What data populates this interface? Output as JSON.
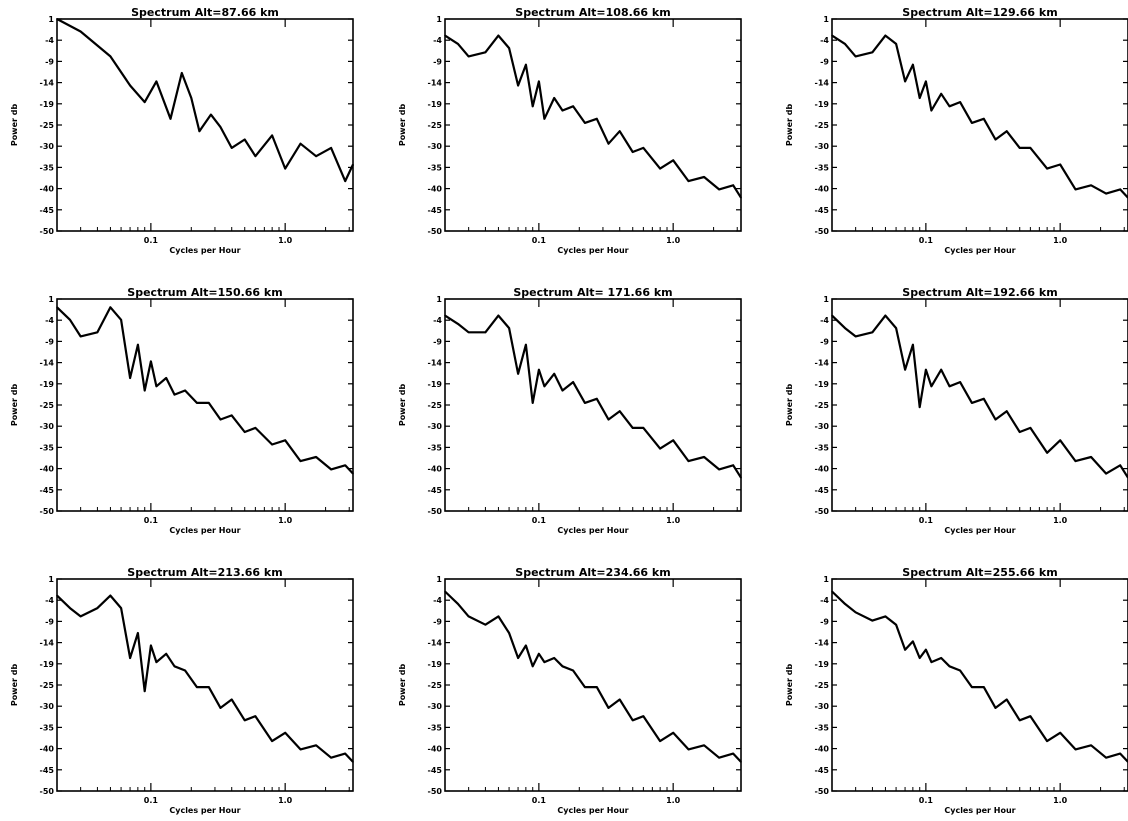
{
  "figure": {
    "colors": {
      "line": "#000000",
      "frame": "#000000",
      "background": "#ffffff"
    }
  },
  "chart_data": [
    {
      "type": "line",
      "title": "Spectrum Alt=87.66 km",
      "xlabel": "Cycles per Hour",
      "ylabel": "Power db",
      "xscale": "log",
      "xlim": [
        0.02,
        3.2
      ],
      "ylim": [
        -50,
        1
      ],
      "x_tick_labels": [
        "0.1",
        "1.0"
      ],
      "y_tick_labels": [
        "1",
        "-4",
        "-9",
        "-14",
        "-19",
        "-25",
        "-30",
        "-35",
        "-40",
        "-45",
        "-50"
      ],
      "series": [
        {
          "x": [
            0.02,
            0.03,
            0.05,
            0.07,
            0.09,
            0.11,
            0.14,
            0.17,
            0.2,
            0.23,
            0.28,
            0.33,
            0.4,
            0.5,
            0.6,
            0.8,
            1.0,
            1.3,
            1.7,
            2.2,
            2.8,
            3.2
          ],
          "y": [
            1,
            -2,
            -8,
            -15,
            -19,
            -14,
            -23,
            -12,
            -18,
            -26,
            -22,
            -25,
            -30,
            -28,
            -32,
            -27,
            -35,
            -29,
            -32,
            -30,
            -38,
            -34
          ]
        }
      ]
    },
    {
      "type": "line",
      "title": "Spectrum Alt=108.66 km",
      "xlabel": "Cycles per Hour",
      "ylabel": "Power db",
      "xscale": "log",
      "xlim": [
        0.02,
        3.2
      ],
      "ylim": [
        -50,
        1
      ],
      "x_tick_labels": [
        "0.1",
        "1.0"
      ],
      "y_tick_labels": [
        "1",
        "-4",
        "-9",
        "-14",
        "-19",
        "-25",
        "-30",
        "-35",
        "-40",
        "-45",
        "-50"
      ],
      "series": [
        {
          "x": [
            0.02,
            0.025,
            0.03,
            0.04,
            0.05,
            0.06,
            0.07,
            0.08,
            0.09,
            0.1,
            0.11,
            0.13,
            0.15,
            0.18,
            0.22,
            0.27,
            0.33,
            0.4,
            0.5,
            0.6,
            0.8,
            1.0,
            1.3,
            1.7,
            2.2,
            2.8,
            3.2
          ],
          "y": [
            -3,
            -5,
            -8,
            -7,
            -3,
            -6,
            -15,
            -10,
            -20,
            -14,
            -23,
            -18,
            -21,
            -20,
            -24,
            -23,
            -29,
            -26,
            -31,
            -30,
            -35,
            -33,
            -38,
            -37,
            -40,
            -39,
            -42
          ]
        }
      ]
    },
    {
      "type": "line",
      "title": "Spectrum Alt=129.66 km",
      "xlabel": "Cycles per Hour",
      "ylabel": "Power db",
      "xscale": "log",
      "xlim": [
        0.02,
        3.2
      ],
      "ylim": [
        -50,
        1
      ],
      "x_tick_labels": [
        "0.1",
        "1.0"
      ],
      "y_tick_labels": [
        "1",
        "-4",
        "-9",
        "-14",
        "-19",
        "-25",
        "-30",
        "-35",
        "-40",
        "-45",
        "-50"
      ],
      "series": [
        {
          "x": [
            0.02,
            0.025,
            0.03,
            0.04,
            0.05,
            0.06,
            0.07,
            0.08,
            0.09,
            0.1,
            0.11,
            0.13,
            0.15,
            0.18,
            0.22,
            0.27,
            0.33,
            0.4,
            0.5,
            0.6,
            0.8,
            1.0,
            1.3,
            1.7,
            2.2,
            2.8,
            3.2
          ],
          "y": [
            -3,
            -5,
            -8,
            -7,
            -3,
            -5,
            -14,
            -10,
            -18,
            -14,
            -21,
            -17,
            -20,
            -19,
            -24,
            -23,
            -28,
            -26,
            -30,
            -30,
            -35,
            -34,
            -40,
            -39,
            -41,
            -40,
            -42
          ]
        }
      ]
    },
    {
      "type": "line",
      "title": "Spectrum Alt=150.66 km",
      "xlabel": "Cycles per Hour",
      "ylabel": "Power db",
      "xscale": "log",
      "xlim": [
        0.02,
        3.2
      ],
      "ylim": [
        -50,
        1
      ],
      "x_tick_labels": [
        "0.1",
        "1.0"
      ],
      "y_tick_labels": [
        "1",
        "-4",
        "-9",
        "-14",
        "-19",
        "-25",
        "-30",
        "-35",
        "-40",
        "-45",
        "-50"
      ],
      "series": [
        {
          "x": [
            0.02,
            0.025,
            0.03,
            0.04,
            0.05,
            0.06,
            0.07,
            0.08,
            0.09,
            0.1,
            0.11,
            0.13,
            0.15,
            0.18,
            0.22,
            0.27,
            0.33,
            0.4,
            0.5,
            0.6,
            0.8,
            1.0,
            1.3,
            1.7,
            2.2,
            2.8,
            3.2
          ],
          "y": [
            -1,
            -4,
            -8,
            -7,
            -1,
            -4,
            -18,
            -10,
            -21,
            -14,
            -20,
            -18,
            -22,
            -21,
            -24,
            -24,
            -28,
            -27,
            -31,
            -30,
            -34,
            -33,
            -38,
            -37,
            -40,
            -39,
            -41
          ]
        }
      ]
    },
    {
      "type": "line",
      "title": "Spectrum Alt= 171.66 km",
      "xlabel": "Cycles per Hour",
      "ylabel": "Power db",
      "xscale": "log",
      "xlim": [
        0.02,
        3.2
      ],
      "ylim": [
        -50,
        1
      ],
      "x_tick_labels": [
        "0.1",
        "1.0"
      ],
      "y_tick_labels": [
        "1",
        "-4",
        "-9",
        "-14",
        "-19",
        "-25",
        "-30",
        "-35",
        "-40",
        "-45",
        "-50"
      ],
      "series": [
        {
          "x": [
            0.02,
            0.025,
            0.03,
            0.04,
            0.05,
            0.06,
            0.07,
            0.08,
            0.09,
            0.1,
            0.11,
            0.13,
            0.15,
            0.18,
            0.22,
            0.27,
            0.33,
            0.4,
            0.5,
            0.6,
            0.8,
            1.0,
            1.3,
            1.7,
            2.2,
            2.8,
            3.2
          ],
          "y": [
            -3,
            -5,
            -7,
            -7,
            -3,
            -6,
            -17,
            -10,
            -24,
            -16,
            -20,
            -17,
            -21,
            -19,
            -24,
            -23,
            -28,
            -26,
            -30,
            -30,
            -35,
            -33,
            -38,
            -37,
            -40,
            -39,
            -42
          ]
        }
      ]
    },
    {
      "type": "line",
      "title": "Spectrum Alt=192.66 km",
      "xlabel": "Cycles per Hour",
      "ylabel": "Power db",
      "xscale": "log",
      "xlim": [
        0.02,
        3.2
      ],
      "ylim": [
        -50,
        1
      ],
      "x_tick_labels": [
        "0.1",
        "1.0"
      ],
      "y_tick_labels": [
        "1",
        "-4",
        "-9",
        "-14",
        "-19",
        "-25",
        "-30",
        "-35",
        "-40",
        "-45",
        "-50"
      ],
      "series": [
        {
          "x": [
            0.02,
            0.025,
            0.03,
            0.04,
            0.05,
            0.06,
            0.07,
            0.08,
            0.09,
            0.1,
            0.11,
            0.13,
            0.15,
            0.18,
            0.22,
            0.27,
            0.33,
            0.4,
            0.5,
            0.6,
            0.8,
            1.0,
            1.3,
            1.7,
            2.2,
            2.8,
            3.2
          ],
          "y": [
            -3,
            -6,
            -8,
            -7,
            -3,
            -6,
            -16,
            -10,
            -25,
            -16,
            -20,
            -16,
            -20,
            -19,
            -24,
            -23,
            -28,
            -26,
            -31,
            -30,
            -36,
            -33,
            -38,
            -37,
            -41,
            -39,
            -42
          ]
        }
      ]
    },
    {
      "type": "line",
      "title": "Spectrum Alt=213.66 km",
      "xlabel": "Cycles per Hour",
      "ylabel": "Power db",
      "xscale": "log",
      "xlim": [
        0.02,
        3.2
      ],
      "ylim": [
        -50,
        1
      ],
      "x_tick_labels": [
        "0.1",
        "1.0"
      ],
      "y_tick_labels": [
        "1",
        "-4",
        "-9",
        "-14",
        "-19",
        "-25",
        "-30",
        "-35",
        "-40",
        "-45",
        "-50"
      ],
      "series": [
        {
          "x": [
            0.02,
            0.025,
            0.03,
            0.04,
            0.05,
            0.06,
            0.07,
            0.08,
            0.09,
            0.1,
            0.11,
            0.13,
            0.15,
            0.18,
            0.22,
            0.27,
            0.33,
            0.4,
            0.5,
            0.6,
            0.8,
            1.0,
            1.3,
            1.7,
            2.2,
            2.8,
            3.2
          ],
          "y": [
            -3,
            -6,
            -8,
            -6,
            -3,
            -6,
            -18,
            -12,
            -26,
            -15,
            -19,
            -17,
            -20,
            -21,
            -25,
            -25,
            -30,
            -28,
            -33,
            -32,
            -38,
            -36,
            -40,
            -39,
            -42,
            -41,
            -43
          ]
        }
      ]
    },
    {
      "type": "line",
      "title": "Spectrum Alt=234.66 km",
      "xlabel": "Cycles per Hour",
      "ylabel": "Power db",
      "xscale": "log",
      "xlim": [
        0.02,
        3.2
      ],
      "ylim": [
        -50,
        1
      ],
      "x_tick_labels": [
        "0.1",
        "1.0"
      ],
      "y_tick_labels": [
        "1",
        "-4",
        "-9",
        "-14",
        "-19",
        "-25",
        "-30",
        "-35",
        "-40",
        "-45",
        "-50"
      ],
      "series": [
        {
          "x": [
            0.02,
            0.025,
            0.03,
            0.04,
            0.05,
            0.06,
            0.07,
            0.08,
            0.09,
            0.1,
            0.11,
            0.13,
            0.15,
            0.18,
            0.22,
            0.27,
            0.33,
            0.4,
            0.5,
            0.6,
            0.8,
            1.0,
            1.3,
            1.7,
            2.2,
            2.8,
            3.2
          ],
          "y": [
            -2,
            -5,
            -8,
            -10,
            -8,
            -12,
            -18,
            -15,
            -20,
            -17,
            -19,
            -18,
            -20,
            -21,
            -25,
            -25,
            -30,
            -28,
            -33,
            -32,
            -38,
            -36,
            -40,
            -39,
            -42,
            -41,
            -43
          ]
        }
      ]
    },
    {
      "type": "line",
      "title": "Spectrum Alt=255.66 km",
      "xlabel": "Cycles per Hour",
      "ylabel": "Power db",
      "xscale": "log",
      "xlim": [
        0.02,
        3.2
      ],
      "ylim": [
        -50,
        1
      ],
      "x_tick_labels": [
        "0.1",
        "1.0"
      ],
      "y_tick_labels": [
        "1",
        "-4",
        "-9",
        "-14",
        "-19",
        "-25",
        "-30",
        "-35",
        "-40",
        "-45",
        "-50"
      ],
      "series": [
        {
          "x": [
            0.02,
            0.025,
            0.03,
            0.04,
            0.05,
            0.06,
            0.07,
            0.08,
            0.09,
            0.1,
            0.11,
            0.13,
            0.15,
            0.18,
            0.22,
            0.27,
            0.33,
            0.4,
            0.5,
            0.6,
            0.8,
            1.0,
            1.3,
            1.7,
            2.2,
            2.8,
            3.2
          ],
          "y": [
            -2,
            -5,
            -7,
            -9,
            -8,
            -10,
            -16,
            -14,
            -18,
            -16,
            -19,
            -18,
            -20,
            -21,
            -25,
            -25,
            -30,
            -28,
            -33,
            -32,
            -38,
            -36,
            -40,
            -39,
            -42,
            -41,
            -43
          ]
        }
      ]
    }
  ]
}
